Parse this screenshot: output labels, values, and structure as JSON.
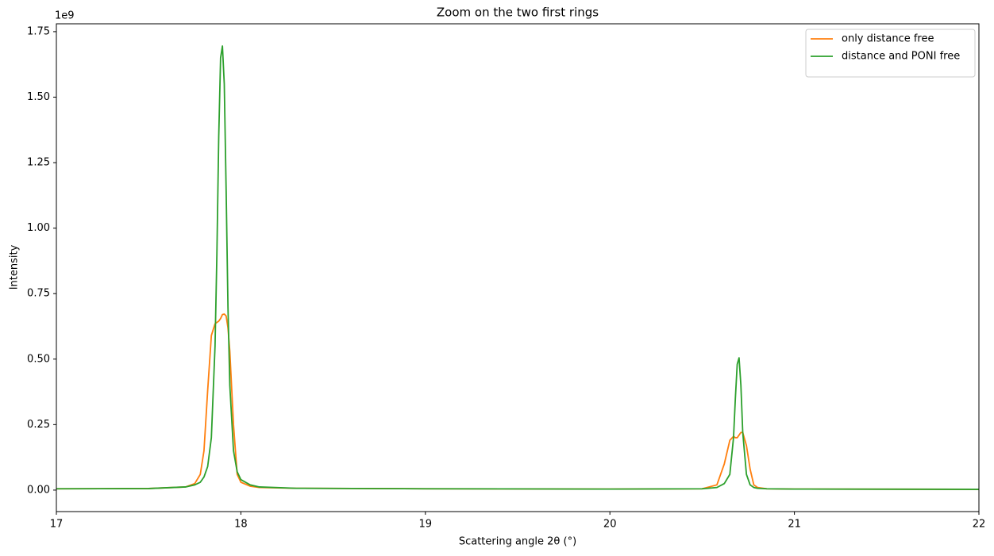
{
  "chart_data": {
    "type": "line",
    "title": "Zoom on the two first rings",
    "xlabel": "Scattering angle 2θ (°)",
    "ylabel": "Intensity",
    "y_offset_label": "1e9",
    "x": [
      17,
      17.5,
      17.7,
      17.75,
      17.78,
      17.8,
      17.82,
      17.84,
      17.86,
      17.87,
      17.88,
      17.89,
      17.9,
      17.91,
      17.92,
      17.93,
      17.94,
      17.96,
      17.98,
      18.0,
      18.05,
      18.1,
      18.3,
      19,
      20,
      20.5,
      20.58,
      20.62,
      20.65,
      20.67,
      20.68,
      20.69,
      20.7,
      20.71,
      20.72,
      20.74,
      20.76,
      20.78,
      20.8,
      20.85,
      21,
      22
    ],
    "series": [
      {
        "name": "only distance free",
        "color": "#ff7f0e",
        "values": [
          0.005,
          0.006,
          0.012,
          0.025,
          0.06,
          0.15,
          0.38,
          0.59,
          0.635,
          0.64,
          0.645,
          0.655,
          0.67,
          0.672,
          0.665,
          0.62,
          0.53,
          0.25,
          0.06,
          0.03,
          0.015,
          0.01,
          0.007,
          0.005,
          0.004,
          0.005,
          0.02,
          0.1,
          0.19,
          0.205,
          0.2,
          0.2,
          0.21,
          0.22,
          0.22,
          0.17,
          0.08,
          0.02,
          0.01,
          0.005,
          0.004,
          0.003
        ]
      },
      {
        "name": "distance and PONI free",
        "color": "#2ca02c",
        "values": [
          0.005,
          0.006,
          0.012,
          0.02,
          0.03,
          0.05,
          0.09,
          0.2,
          0.55,
          0.9,
          1.35,
          1.65,
          1.695,
          1.55,
          1.15,
          0.7,
          0.4,
          0.15,
          0.07,
          0.04,
          0.02,
          0.012,
          0.007,
          0.005,
          0.004,
          0.005,
          0.01,
          0.025,
          0.06,
          0.2,
          0.35,
          0.48,
          0.505,
          0.4,
          0.22,
          0.06,
          0.02,
          0.01,
          0.007,
          0.005,
          0.004,
          0.003
        ]
      }
    ],
    "xlim": [
      17,
      22
    ],
    "xticks": [
      17,
      18,
      19,
      20,
      21,
      22
    ],
    "ylim": [
      -0.082,
      1.78
    ],
    "yticks": [
      {
        "value": 0,
        "label": "0.00"
      },
      {
        "value": 0.25,
        "label": "0.25"
      },
      {
        "value": 0.5,
        "label": "0.50"
      },
      {
        "value": 0.75,
        "label": "0.75"
      },
      {
        "value": 1.0,
        "label": "1.00"
      },
      {
        "value": 1.25,
        "label": "1.25"
      },
      {
        "value": 1.5,
        "label": "1.50"
      },
      {
        "value": 1.75,
        "label": "1.75"
      }
    ],
    "grid": false,
    "legend": "upper right"
  }
}
